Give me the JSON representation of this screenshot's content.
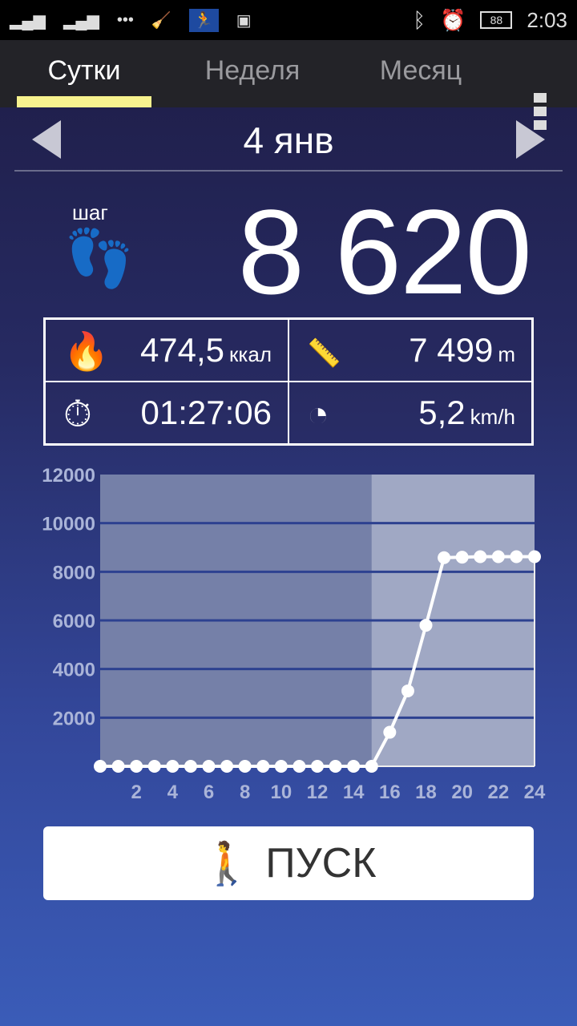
{
  "status_bar": {
    "icons": [
      "signal-sim1-icon",
      "signal-sim2-icon",
      "message-icon",
      "cleaner-icon",
      "pedometer-icon",
      "image-icon",
      "bluetooth-icon",
      "alarm-icon"
    ],
    "battery": "88",
    "time": "2:03"
  },
  "tabs": [
    {
      "label": "Сутки",
      "active": true
    },
    {
      "label": "Неделя"
    },
    {
      "label": "Месяц"
    }
  ],
  "date": "4 янв",
  "steps": {
    "label": "шаг",
    "value": "8 620"
  },
  "stats": {
    "calories": {
      "value": "474,5",
      "unit": "ккал"
    },
    "distance": {
      "value": "7 499",
      "unit": "m"
    },
    "duration": {
      "value": "01:27:06"
    },
    "speed": {
      "value": "5,2",
      "unit": "km/h"
    }
  },
  "chart_data": {
    "type": "area",
    "x": [
      0,
      1,
      2,
      3,
      4,
      5,
      6,
      7,
      8,
      9,
      10,
      11,
      12,
      13,
      14,
      15,
      16,
      17,
      18,
      19,
      20,
      21,
      22,
      23,
      24
    ],
    "values": [
      0,
      0,
      0,
      0,
      0,
      0,
      0,
      0,
      0,
      0,
      0,
      0,
      0,
      0,
      0,
      0,
      1400,
      3100,
      5800,
      8580,
      8600,
      8620,
      8620,
      8620,
      8620
    ],
    "x_ticks": [
      "2",
      "4",
      "6",
      "8",
      "10",
      "12",
      "14",
      "16",
      "18",
      "20",
      "22",
      "24"
    ],
    "y_ticks": [
      "2000",
      "4000",
      "6000",
      "8000",
      "10000",
      "12000"
    ],
    "ylim": [
      0,
      12000
    ],
    "xlim": [
      0,
      24
    ],
    "grid": true,
    "current_hour": 15
  },
  "start_button": {
    "label": "ПУСК"
  },
  "colors": {
    "accent": "#f7f28e",
    "background_top": "#1e1c44",
    "background_bottom": "#3a5cb8"
  }
}
